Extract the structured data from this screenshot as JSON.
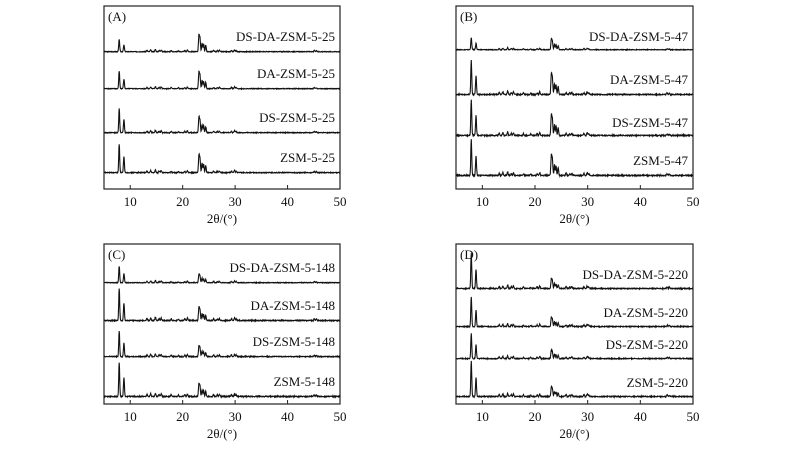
{
  "chart_data": [
    {
      "type": "line",
      "panel": "(A)",
      "xlabel": "2θ/(°)",
      "xlim": [
        5,
        50
      ],
      "xticks": [
        "10",
        "20",
        "30",
        "40",
        "50"
      ],
      "series": [
        {
          "name": "DS-DA-ZSM-5-25",
          "low_angle_scale": 0.55,
          "high_angle_scale": 1.0
        },
        {
          "name": "DA-ZSM-5-25",
          "low_angle_scale": 0.8,
          "high_angle_scale": 1.0
        },
        {
          "name": "DS-ZSM-5-25",
          "low_angle_scale": 1.0,
          "high_angle_scale": 0.85
        },
        {
          "name": "ZSM-5-25",
          "low_angle_scale": 1.1,
          "high_angle_scale": 0.9
        }
      ]
    },
    {
      "type": "line",
      "panel": "(B)",
      "xlabel": "2θ/(°)",
      "xlim": [
        5,
        50
      ],
      "xticks": [
        "10",
        "20",
        "30",
        "40",
        "50"
      ],
      "series": [
        {
          "name": "DS-DA-ZSM-5-47",
          "low_angle_scale": 0.6,
          "high_angle_scale": 0.7
        },
        {
          "name": "DA-ZSM-5-47",
          "low_angle_scale": 1.0,
          "high_angle_scale": 0.8
        },
        {
          "name": "DS-ZSM-5-47",
          "low_angle_scale": 1.0,
          "high_angle_scale": 0.75
        },
        {
          "name": "ZSM-5-47",
          "low_angle_scale": 1.0,
          "high_angle_scale": 0.75
        }
      ]
    },
    {
      "type": "line",
      "panel": "(C)",
      "xlabel": "2θ/(°)",
      "xlim": [
        5,
        50
      ],
      "xticks": [
        "10",
        "20",
        "30",
        "40",
        "50"
      ],
      "series": [
        {
          "name": "DS-DA-ZSM-5-148",
          "low_angle_scale": 0.75,
          "high_angle_scale": 0.5
        },
        {
          "name": "DA-ZSM-5-148",
          "low_angle_scale": 1.0,
          "high_angle_scale": 0.55
        },
        {
          "name": "DS-ZSM-5-148",
          "low_angle_scale": 0.9,
          "high_angle_scale": 0.5
        },
        {
          "name": "ZSM-5-148",
          "low_angle_scale": 1.0,
          "high_angle_scale": 0.5
        }
      ]
    },
    {
      "type": "line",
      "panel": "(D)",
      "xlabel": "2θ/(°)",
      "xlim": [
        5,
        50
      ],
      "xticks": [
        "10",
        "20",
        "30",
        "40",
        "50"
      ],
      "series": [
        {
          "name": "DS-DA-ZSM-5-220",
          "low_angle_scale": 1.1,
          "high_angle_scale": 0.4
        },
        {
          "name": "DA-ZSM-5-220",
          "low_angle_scale": 1.0,
          "high_angle_scale": 0.4
        },
        {
          "name": "DS-ZSM-5-220",
          "low_angle_scale": 0.9,
          "high_angle_scale": 0.4
        },
        {
          "name": "ZSM-5-220",
          "low_angle_scale": 1.1,
          "high_angle_scale": 0.4
        }
      ]
    }
  ],
  "peaks": [
    [
      7.9,
      1.0
    ],
    [
      8.8,
      0.55
    ],
    [
      13.2,
      0.06
    ],
    [
      13.9,
      0.08
    ],
    [
      14.8,
      0.1
    ],
    [
      15.5,
      0.06
    ],
    [
      15.9,
      0.08
    ],
    [
      17.8,
      0.05
    ],
    [
      19.2,
      0.04
    ],
    [
      20.4,
      0.05
    ],
    [
      20.9,
      0.08
    ],
    [
      23.1,
      0.75
    ],
    [
      23.3,
      0.6
    ],
    [
      23.7,
      0.4
    ],
    [
      24.0,
      0.35
    ],
    [
      24.4,
      0.3
    ],
    [
      25.9,
      0.06
    ],
    [
      26.6,
      0.05
    ],
    [
      27.0,
      0.06
    ],
    [
      29.3,
      0.06
    ],
    [
      29.9,
      0.08
    ],
    [
      30.2,
      0.05
    ],
    [
      45.1,
      0.05
    ],
    [
      45.5,
      0.04
    ]
  ]
}
